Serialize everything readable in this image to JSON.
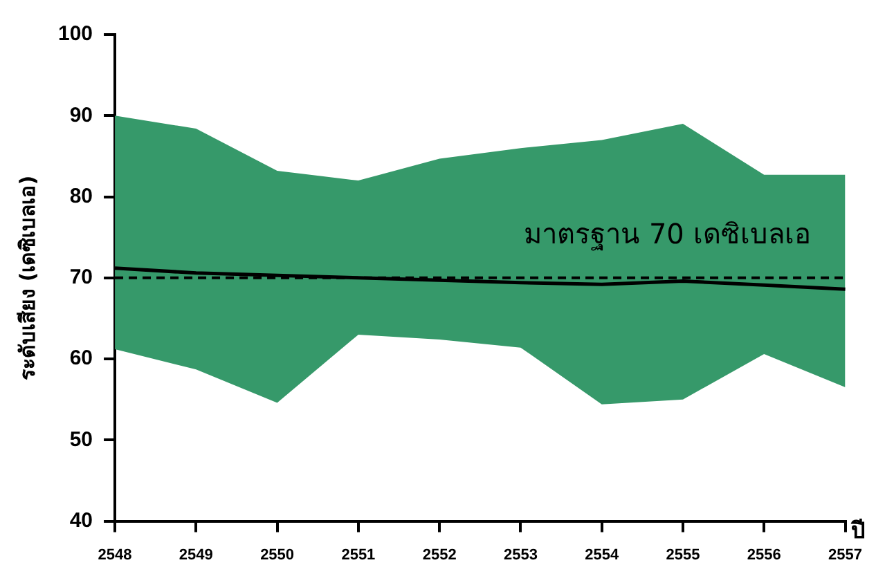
{
  "chart_data": {
    "type": "line",
    "ylabel": "ระดับเสียง (เดซิเบลเอ)",
    "xlabel": "ปี",
    "categories": [
      "2548",
      "2549",
      "2550",
      "2551",
      "2552",
      "2553",
      "2554",
      "2555",
      "2556",
      "2557"
    ],
    "series": [
      {
        "color": "#000000",
        "values": [
          71.2,
          70.6,
          70.3,
          70.0,
          69.7,
          69.4,
          69.2,
          69.6,
          69.1,
          68.6
        ],
        "lower": [
          61.2,
          58.7,
          54.6,
          63.0,
          62.4,
          61.4,
          54.4,
          55.0,
          60.6,
          56.5
        ],
        "upper": [
          90.0,
          88.4,
          83.2,
          82.0,
          84.7,
          86.0,
          87.0,
          89.0,
          82.7,
          82.7
        ]
      }
    ],
    "ylim": [
      40,
      100
    ],
    "yticks": [
      40,
      50,
      60,
      70,
      80,
      90,
      100
    ],
    "ref_lines": [
      {
        "axis": "y",
        "value": 70,
        "label": "มาตรฐาน 70 เดซิเบลเอ",
        "line_style": "dashed",
        "color": "#000000"
      }
    ],
    "grid": false,
    "legend": false,
    "marker": "none",
    "line_style": "solid"
  }
}
